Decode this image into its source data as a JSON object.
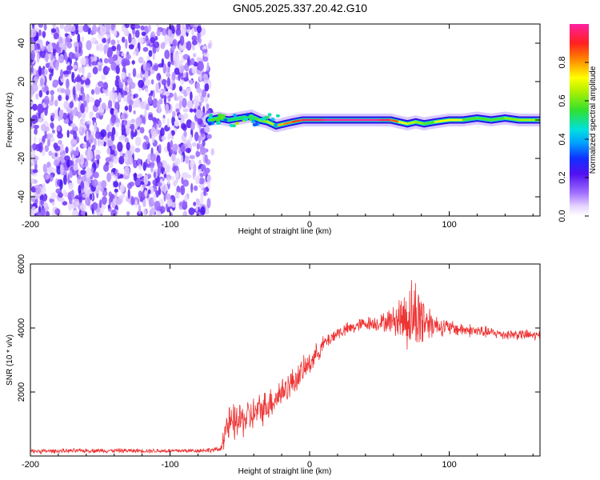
{
  "title": "GN05.2025.337.20.42.G10",
  "chart_data": [
    {
      "type": "heatmap",
      "name": "spectrogram",
      "xlabel": "Height of straight line (km)",
      "ylabel": "Frequency (Hz)",
      "xlim": [
        -200,
        165
      ],
      "ylim": [
        -50,
        50
      ],
      "xticks": [
        -200,
        -100,
        0,
        100
      ],
      "yticks": [
        -40,
        -20,
        0,
        20,
        40
      ],
      "colorbar": {
        "label": "Normalized spectral amplitude",
        "range": [
          0,
          1
        ],
        "ticks": [
          0.0,
          0.2,
          0.4,
          0.6,
          0.8
        ]
      },
      "noise_region_x": [
        -200,
        -72
      ],
      "signal_trace": [
        {
          "x": -72,
          "freq": 0,
          "amp": 0.55
        },
        {
          "x": -65,
          "freq": 1,
          "amp": 0.6
        },
        {
          "x": -58,
          "freq": 0,
          "amp": 0.5
        },
        {
          "x": -50,
          "freq": 1,
          "amp": 0.55
        },
        {
          "x": -42,
          "freq": 2,
          "amp": 0.5
        },
        {
          "x": -36,
          "freq": 0,
          "amp": 0.65
        },
        {
          "x": -30,
          "freq": -1,
          "amp": 0.6
        },
        {
          "x": -24,
          "freq": -3,
          "amp": 0.75
        },
        {
          "x": -18,
          "freq": -2,
          "amp": 0.8
        },
        {
          "x": -12,
          "freq": -1,
          "amp": 0.85
        },
        {
          "x": -5,
          "freq": 0,
          "amp": 0.9
        },
        {
          "x": 10,
          "freq": 0,
          "amp": 1.0
        },
        {
          "x": 30,
          "freq": 0,
          "amp": 1.0
        },
        {
          "x": 50,
          "freq": 0,
          "amp": 1.0
        },
        {
          "x": 58,
          "freq": 0,
          "amp": 0.9
        },
        {
          "x": 64,
          "freq": -1,
          "amp": 0.8
        },
        {
          "x": 70,
          "freq": -2,
          "amp": 0.65
        },
        {
          "x": 76,
          "freq": -1,
          "amp": 0.7
        },
        {
          "x": 82,
          "freq": -2,
          "amp": 0.55
        },
        {
          "x": 90,
          "freq": -1,
          "amp": 0.6
        },
        {
          "x": 100,
          "freq": 0,
          "amp": 0.85
        },
        {
          "x": 110,
          "freq": 0,
          "amp": 0.6
        },
        {
          "x": 120,
          "freq": 1,
          "amp": 0.55
        },
        {
          "x": 130,
          "freq": 0,
          "amp": 0.6
        },
        {
          "x": 140,
          "freq": 1,
          "amp": 0.55
        },
        {
          "x": 150,
          "freq": 0,
          "amp": 0.7
        },
        {
          "x": 165,
          "freq": 0,
          "amp": 0.6
        }
      ]
    },
    {
      "type": "line",
      "name": "snr",
      "xlabel": "Height of straight line (km)",
      "ylabel": "SNR (10 * v/v)",
      "xlim": [
        -200,
        165
      ],
      "ylim": [
        0,
        6000
      ],
      "xticks": [
        -200,
        -100,
        0,
        100
      ],
      "yticks": [
        2000,
        4000,
        6000
      ],
      "color": "#ee3333",
      "series": [
        {
          "name": "SNR",
          "x": [
            -200,
            -150,
            -100,
            -80,
            -64,
            -60,
            -50,
            -40,
            -30,
            -20,
            -10,
            0,
            10,
            20,
            30,
            40,
            50,
            60,
            70,
            75,
            80,
            85,
            90,
            100,
            110,
            120,
            130,
            140,
            150,
            165
          ],
          "y": [
            150,
            170,
            160,
            170,
            200,
            900,
            1100,
            1300,
            1600,
            2000,
            2400,
            2900,
            3500,
            3850,
            4000,
            4150,
            4150,
            4250,
            4350,
            4400,
            4300,
            4200,
            4100,
            4000,
            3950,
            3900,
            3850,
            3800,
            3800,
            3750
          ],
          "noise_amplitude": [
            80,
            80,
            80,
            80,
            100,
            700,
            700,
            650,
            600,
            600,
            500,
            450,
            300,
            250,
            250,
            250,
            300,
            500,
            1300,
            1400,
            1300,
            700,
            400,
            300,
            250,
            250,
            200,
            200,
            200,
            200
          ]
        }
      ]
    }
  ]
}
